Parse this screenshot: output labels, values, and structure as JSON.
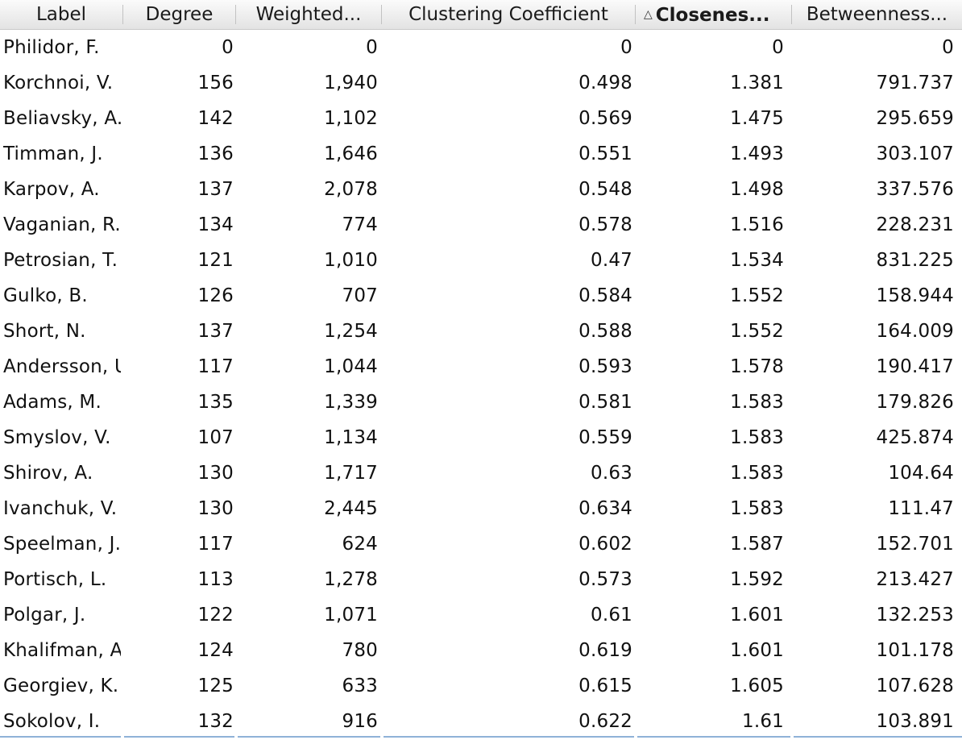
{
  "table": {
    "columns": [
      {
        "key": "label",
        "title": "Label"
      },
      {
        "key": "degree",
        "title": "Degree"
      },
      {
        "key": "weighted",
        "title": "Weighted..."
      },
      {
        "key": "clustering",
        "title": "Clustering Coefficient"
      },
      {
        "key": "closeness",
        "title": "Closenes...",
        "sorted": "ascending"
      },
      {
        "key": "betweenness",
        "title": "Betweenness..."
      }
    ],
    "rows": [
      [
        "Philidor, F.",
        "0",
        "0",
        "0",
        "0",
        "0"
      ],
      [
        "Korchnoi, V.",
        "156",
        "1,940",
        "0.498",
        "1.381",
        "791.737"
      ],
      [
        "Beliavsky, A.",
        "142",
        "1,102",
        "0.569",
        "1.475",
        "295.659"
      ],
      [
        "Timman, J.",
        "136",
        "1,646",
        "0.551",
        "1.493",
        "303.107"
      ],
      [
        "Karpov, A.",
        "137",
        "2,078",
        "0.548",
        "1.498",
        "337.576"
      ],
      [
        "Vaganian, R.",
        "134",
        "774",
        "0.578",
        "1.516",
        "228.231"
      ],
      [
        "Petrosian, T.",
        "121",
        "1,010",
        "0.47",
        "1.534",
        "831.225"
      ],
      [
        "Gulko, B.",
        "126",
        "707",
        "0.584",
        "1.552",
        "158.944"
      ],
      [
        "Short, N.",
        "137",
        "1,254",
        "0.588",
        "1.552",
        "164.009"
      ],
      [
        "Andersson, U.",
        "117",
        "1,044",
        "0.593",
        "1.578",
        "190.417"
      ],
      [
        "Adams, M.",
        "135",
        "1,339",
        "0.581",
        "1.583",
        "179.826"
      ],
      [
        "Smyslov, V.",
        "107",
        "1,134",
        "0.559",
        "1.583",
        "425.874"
      ],
      [
        "Shirov, A.",
        "130",
        "1,717",
        "0.63",
        "1.583",
        "104.64"
      ],
      [
        "Ivanchuk, V.",
        "130",
        "2,445",
        "0.634",
        "1.583",
        "111.47"
      ],
      [
        "Speelman, J.",
        "117",
        "624",
        "0.602",
        "1.587",
        "152.701"
      ],
      [
        "Portisch, L.",
        "113",
        "1,278",
        "0.573",
        "1.592",
        "213.427"
      ],
      [
        "Polgar, J.",
        "122",
        "1,071",
        "0.61",
        "1.601",
        "132.253"
      ],
      [
        "Khalifman, A.",
        "124",
        "780",
        "0.619",
        "1.601",
        "101.178"
      ],
      [
        "Georgiev, K.",
        "125",
        "633",
        "0.615",
        "1.605",
        "107.628"
      ],
      [
        "Sokolov, I.",
        "132",
        "916",
        "0.622",
        "1.61",
        "103.891"
      ]
    ]
  }
}
